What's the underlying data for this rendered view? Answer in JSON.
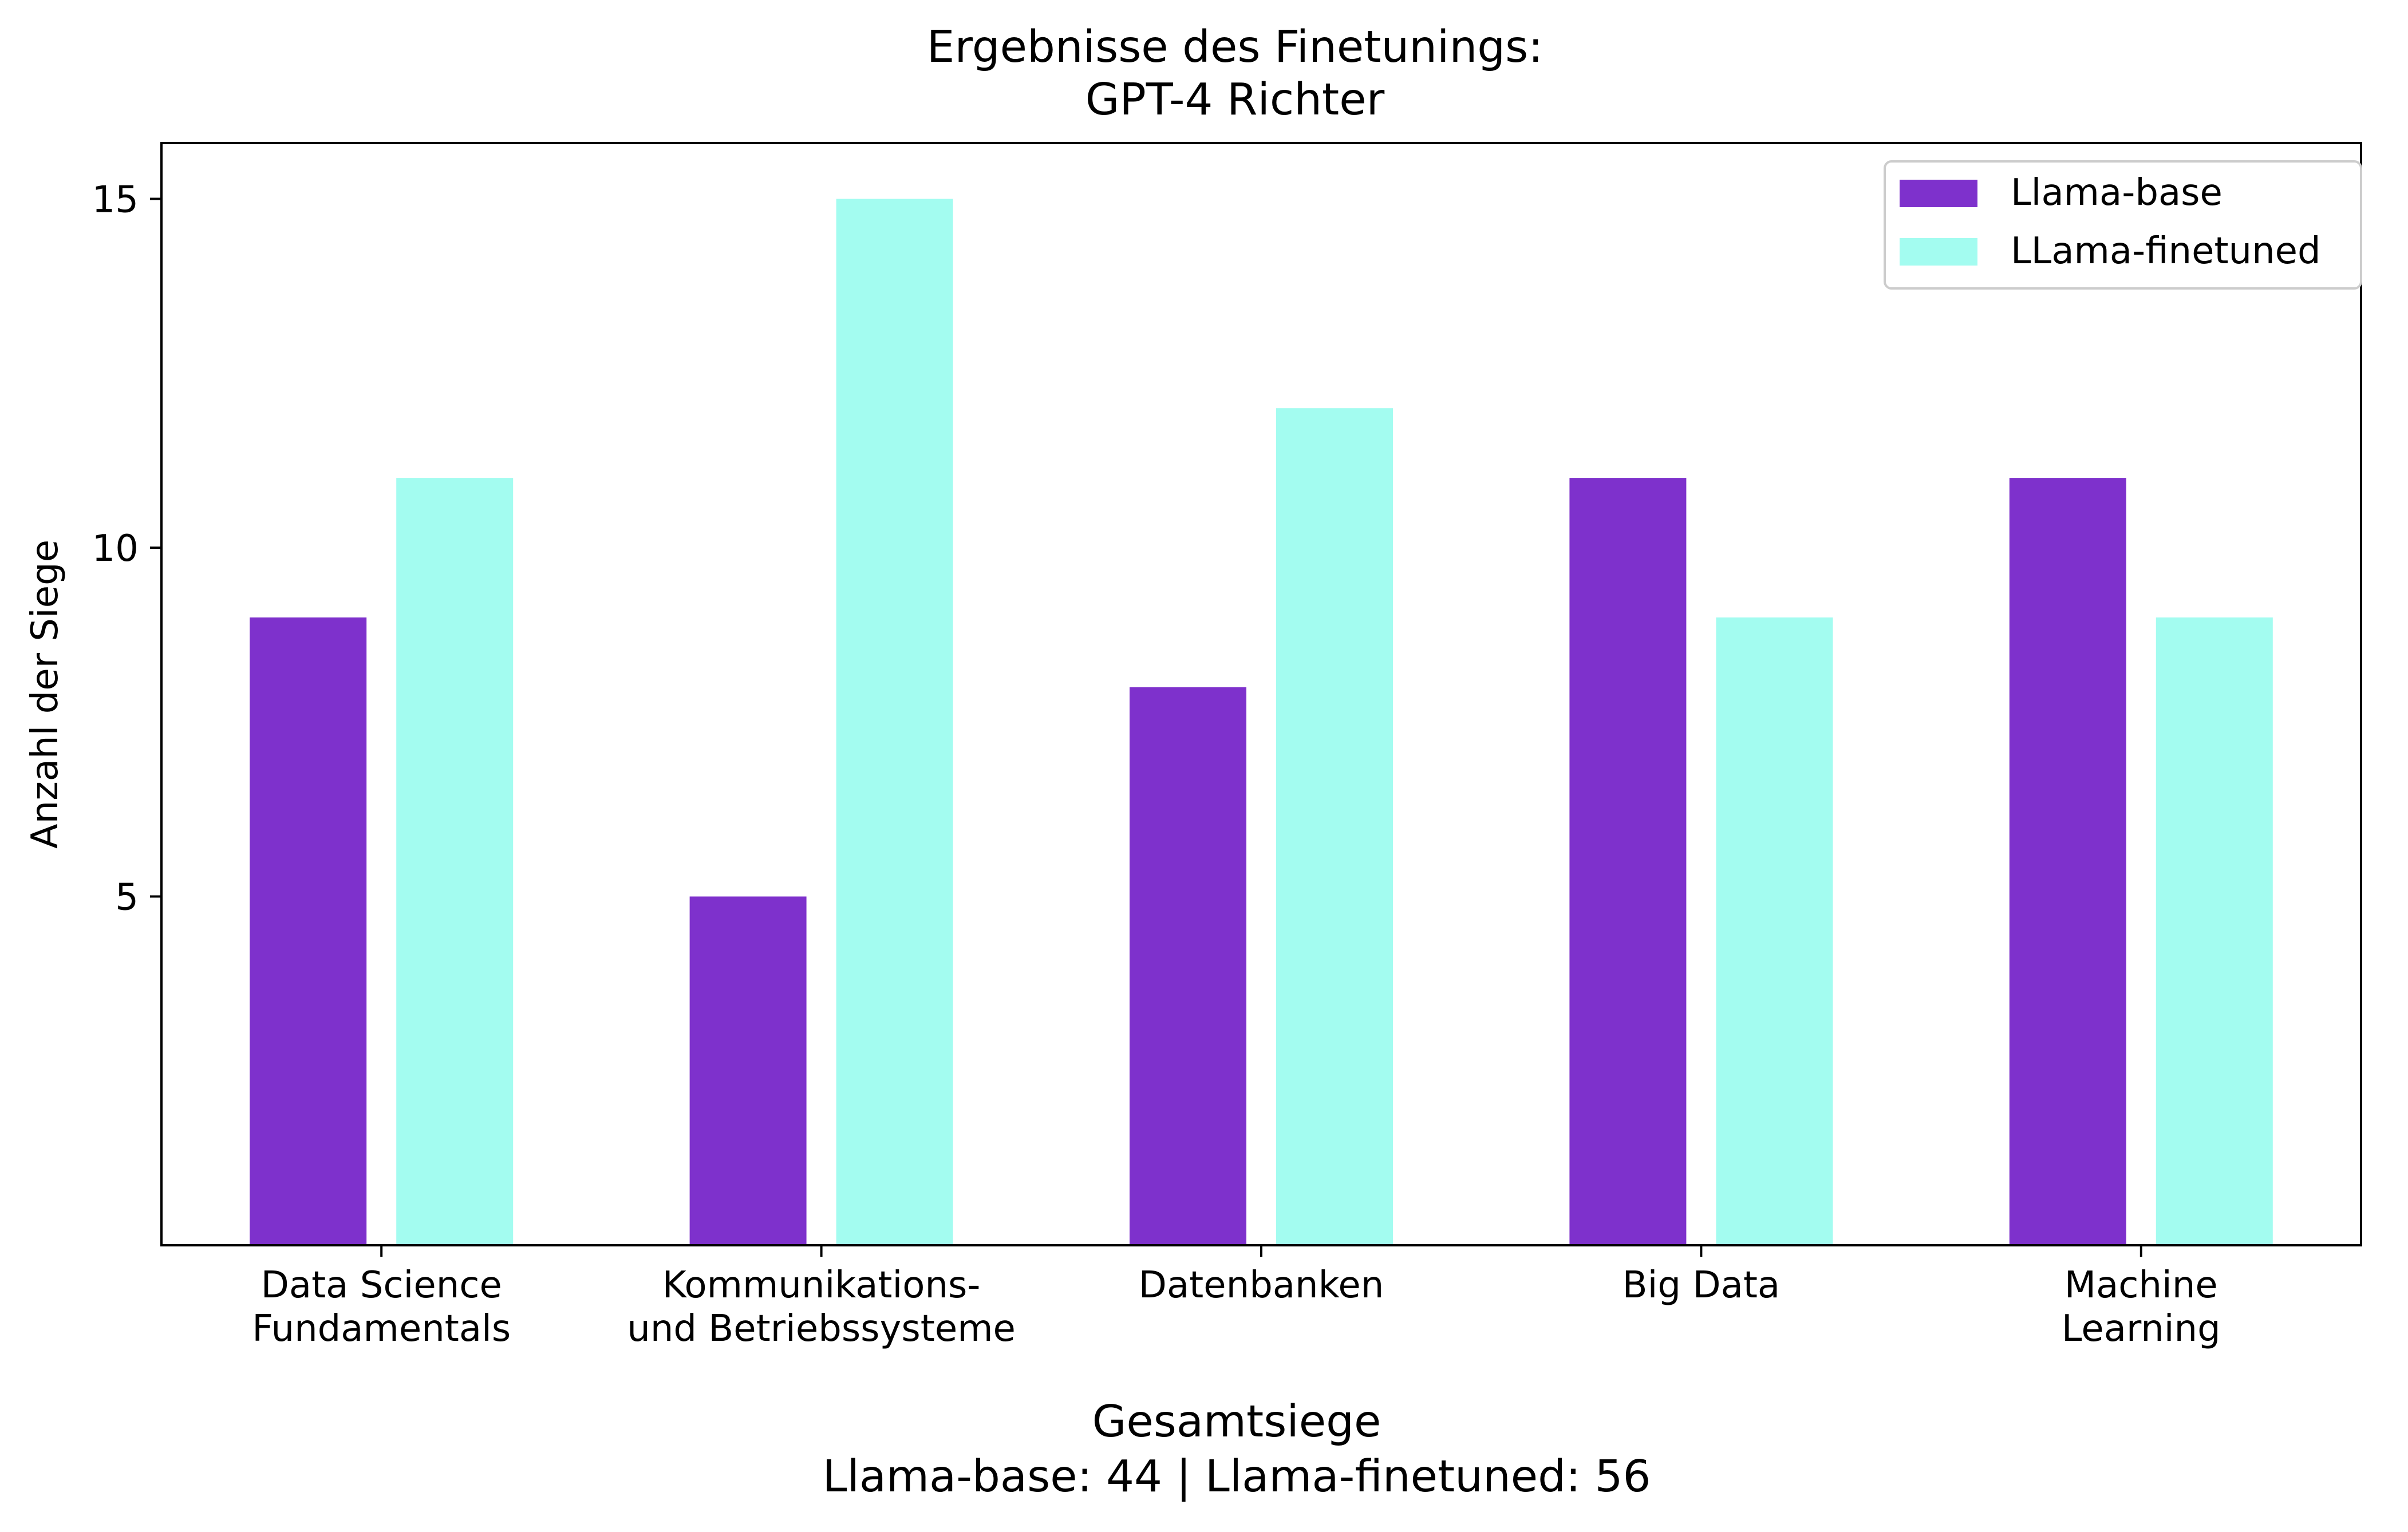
{
  "chart_data": {
    "type": "bar",
    "title": "Ergebnisse des Finetunings:",
    "subtitle": "GPT-4 Richter",
    "xlabel": "",
    "ylabel": "Anzahl der Siege",
    "ylim": [
      0,
      15.8
    ],
    "yticks": [
      5,
      10,
      15
    ],
    "categories": [
      [
        "Data Science",
        "Fundamentals"
      ],
      [
        "Kommunikations-",
        "und Betriebssysteme"
      ],
      [
        "Datenbanken"
      ],
      [
        "Big Data"
      ],
      [
        "Machine",
        "Learning"
      ]
    ],
    "series": [
      {
        "name": "Llama-base",
        "color": "#7e31cc",
        "values": [
          9,
          5,
          8,
          11,
          11
        ]
      },
      {
        "name": "LLama-finetuned",
        "color": "#a3fcf0",
        "values": [
          11,
          15,
          12,
          9,
          9
        ]
      }
    ],
    "legend_position": "top-right",
    "grid": false
  },
  "footer": {
    "heading": "Gesamtsiege",
    "summary": "Llama-base: 44 | Llama-finetuned: 56"
  }
}
